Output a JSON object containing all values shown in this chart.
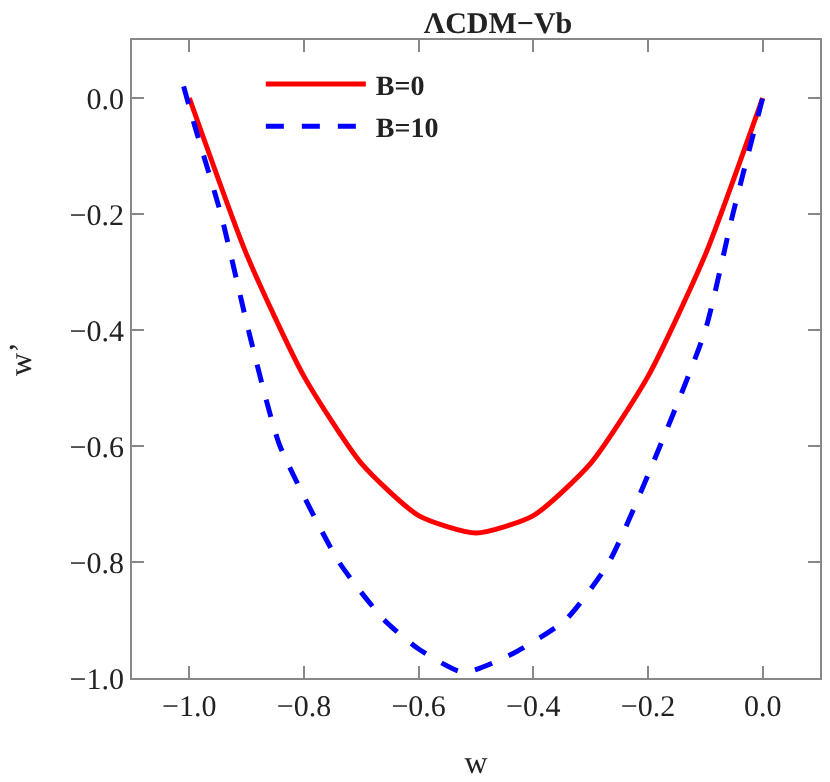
{
  "chart_data": {
    "type": "line",
    "title": "ΛCDM−Vb",
    "xlabel": "w",
    "ylabel": "w’",
    "xlim": [
      -1.1,
      0.1
    ],
    "ylim": [
      -1.0,
      0.1
    ],
    "xticks": [
      {
        "value": -1.0,
        "label": "−1.0"
      },
      {
        "value": -0.8,
        "label": "−0.8"
      },
      {
        "value": -0.6,
        "label": "−0.6"
      },
      {
        "value": -0.4,
        "label": "−0.4"
      },
      {
        "value": -0.2,
        "label": "−0.2"
      },
      {
        "value": 0.0,
        "label": "0.0"
      }
    ],
    "yticks": [
      {
        "value": -1.0,
        "label": "−1.0"
      },
      {
        "value": -0.8,
        "label": "−0.8"
      },
      {
        "value": -0.6,
        "label": "−0.6"
      },
      {
        "value": -0.4,
        "label": "−0.4"
      },
      {
        "value": -0.2,
        "label": "−0.2"
      },
      {
        "value": 0.0,
        "label": "0.0"
      }
    ],
    "grid": false,
    "legend": "top left",
    "marker": "none",
    "series": [
      {
        "name": "B=0",
        "color": "#ff0000",
        "line_style": "solid",
        "x": [
          -1.0,
          -0.9,
          -0.8,
          -0.7,
          -0.6,
          -0.5,
          -0.4,
          -0.3,
          -0.2,
          -0.1,
          0.0
        ],
        "values": [
          0.0,
          -0.27,
          -0.48,
          -0.63,
          -0.72,
          -0.75,
          -0.72,
          -0.63,
          -0.48,
          -0.27,
          0.0
        ]
      },
      {
        "name": "B=10",
        "color": "#0000ff",
        "line_style": "dashed",
        "x": [
          -1.01,
          -0.99,
          -0.945,
          -0.897,
          -0.866,
          -0.842,
          -0.739,
          -0.66,
          -0.6,
          -0.522,
          -0.44,
          -0.344,
          -0.268,
          -0.179,
          -0.1,
          -0.052,
          0.0
        ],
        "values": [
          0.02,
          -0.05,
          -0.2,
          -0.4,
          -0.52,
          -0.6,
          -0.8,
          -0.9,
          -0.95,
          -0.99,
          -0.96,
          -0.9,
          -0.8,
          -0.6,
          -0.4,
          -0.2,
          0.0
        ]
      }
    ]
  }
}
